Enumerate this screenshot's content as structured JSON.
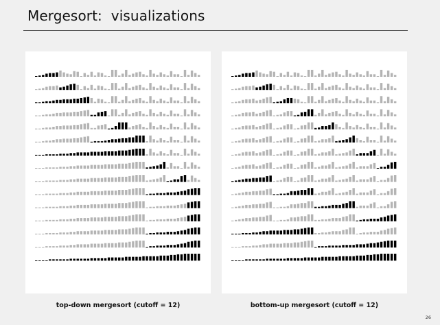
{
  "slide": {
    "title": "Mergesort:  visualizations",
    "page_number": "26"
  },
  "panels": [
    {
      "id": "top-down",
      "caption": "top-down mergesort (cutoff = 12)",
      "row_count": 15,
      "array_size": 48,
      "black_ranges": [
        [
          0,
          6
        ],
        [
          7,
          11
        ],
        [
          0,
          15
        ],
        [
          16,
          20
        ],
        [
          21,
          26
        ],
        [
          16,
          31
        ],
        [
          0,
          31
        ],
        [
          32,
          37
        ],
        [
          38,
          43
        ],
        [
          32,
          47
        ],
        [
          44,
          47
        ],
        [
          44,
          47
        ],
        [
          32,
          47
        ],
        [
          32,
          47
        ],
        [
          0,
          47
        ]
      ]
    },
    {
      "id": "bottom-up",
      "caption": "bottom-up mergesort (cutoff = 12)",
      "row_count": 15,
      "array_size": 48,
      "black_ranges": [
        [
          0,
          6
        ],
        [
          7,
          11
        ],
        [
          12,
          17
        ],
        [
          18,
          23
        ],
        [
          24,
          29
        ],
        [
          30,
          35
        ],
        [
          36,
          41
        ],
        [
          42,
          47
        ],
        [
          0,
          11
        ],
        [
          12,
          23
        ],
        [
          24,
          35
        ],
        [
          36,
          47
        ],
        [
          0,
          23
        ],
        [
          24,
          47
        ],
        [
          0,
          47
        ]
      ]
    }
  ],
  "colors": {
    "active_bar": "#000000",
    "inactive_bar": "#b4b4b4",
    "panel_bg": "#ffffff",
    "slide_bg": "#f0f0f0"
  }
}
